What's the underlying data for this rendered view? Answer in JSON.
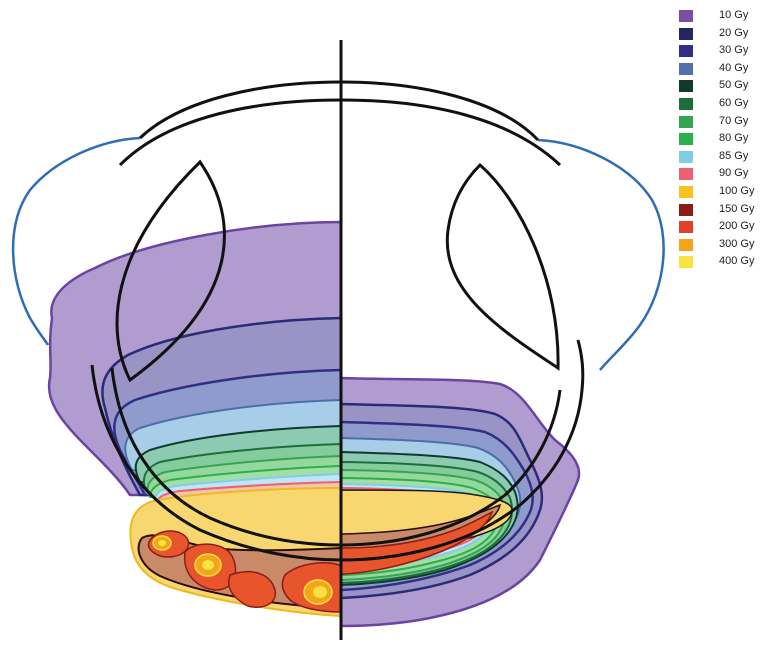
{
  "legend": [
    {
      "label": "10 Gy",
      "color": "#7b4fa6"
    },
    {
      "label": "20 Gy",
      "color": "#23265f"
    },
    {
      "label": "30 Gy",
      "color": "#2f2f86"
    },
    {
      "label": "40 Gy",
      "color": "#5470a8"
    },
    {
      "label": "50 Gy",
      "color": "#0e3b2c"
    },
    {
      "label": "60 Gy",
      "color": "#1d6e3b"
    },
    {
      "label": "70 Gy",
      "color": "#35a553"
    },
    {
      "label": "80 Gy",
      "color": "#2bb04a"
    },
    {
      "label": "85 Gy",
      "color": "#7fcde6"
    },
    {
      "label": "90 Gy",
      "color": "#ef5f74"
    },
    {
      "label": "100 Gy",
      "color": "#f7c21d"
    },
    {
      "label": "150 Gy",
      "color": "#8b1d16"
    },
    {
      "label": "200 Gy",
      "color": "#e2402a"
    },
    {
      "label": "300 Gy",
      "color": "#f6a51b"
    },
    {
      "label": "400 Gy",
      "color": "#f7e443"
    }
  ]
}
